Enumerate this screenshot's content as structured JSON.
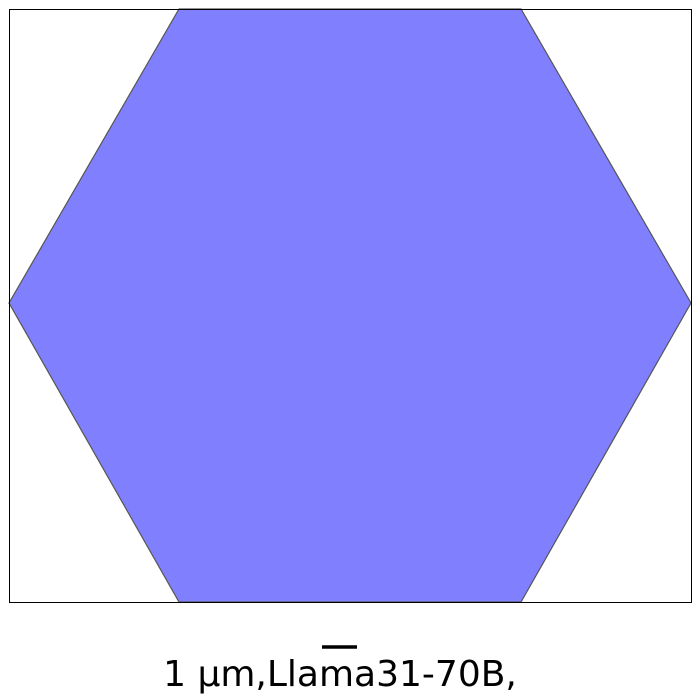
{
  "figure": {
    "caption": "1 μm,Llama31-70B,",
    "caption_overline_text": "m",
    "shape": "hexagon",
    "colors": {
      "fill": "#8080ff",
      "edge": "#555555",
      "frame": "#000000",
      "background": "#ffffff"
    }
  }
}
